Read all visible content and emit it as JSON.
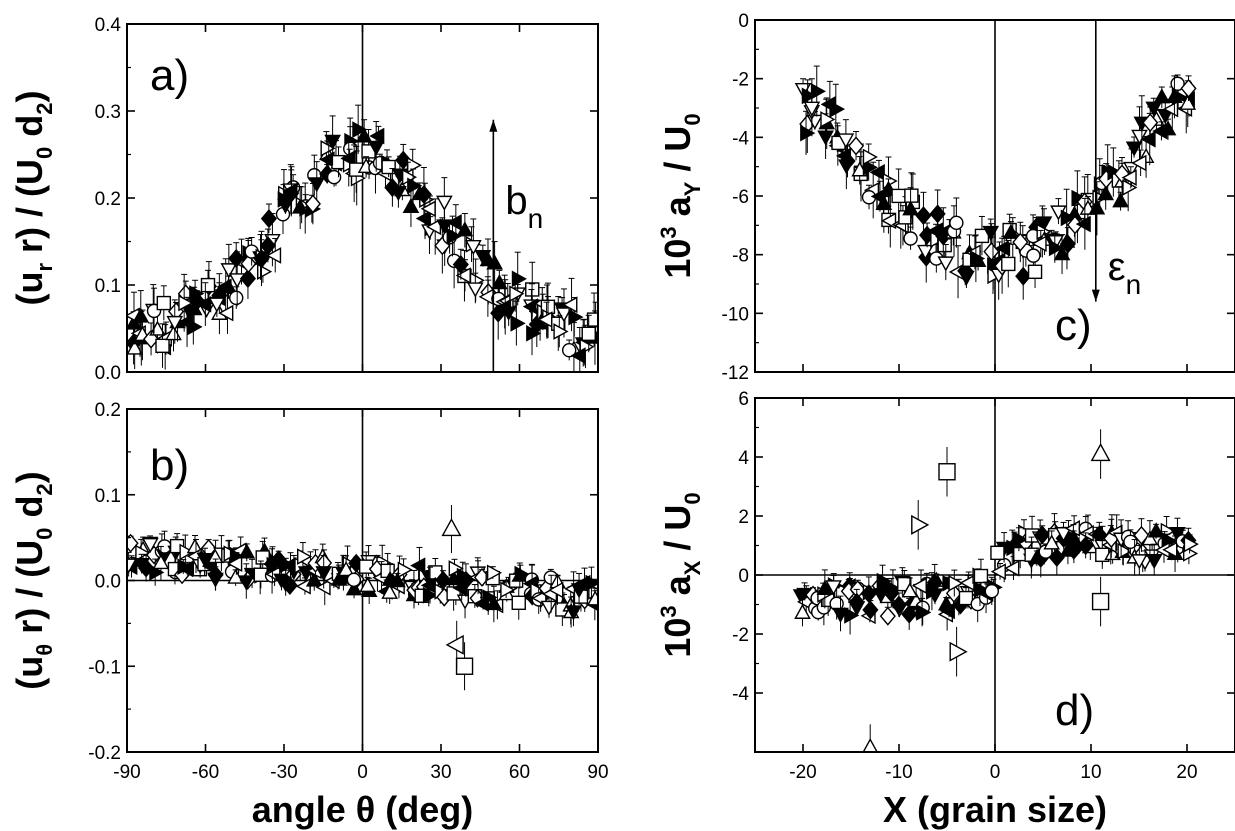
{
  "chart_data": [
    {
      "id": "a",
      "type": "scatter",
      "panel_label": "a)",
      "ylabel": {
        "pre": "(u",
        "sub1": "r",
        "mid": " r) / (U",
        "sub2": "0",
        "mid2": " d",
        "sub3": "2",
        "post": ")"
      },
      "xlim": [
        -90,
        90
      ],
      "ylim": [
        0.0,
        0.4
      ],
      "yticks": [
        0.0,
        0.1,
        0.2,
        0.3,
        0.4
      ],
      "ytick_labels": [
        "0.0",
        "0.1",
        "0.2",
        "0.3",
        "0.4"
      ],
      "annotation": {
        "text": "b",
        "sub": "n",
        "x": 50,
        "y_from": 0.0,
        "y_to": 0.29
      },
      "vline_x": 0,
      "profile": {
        "kind": "peak",
        "base": 0.04,
        "peak": 0.25,
        "center": 0,
        "width": 32,
        "noise": 0.03
      }
    },
    {
      "id": "b",
      "type": "scatter",
      "panel_label": "b)",
      "ylabel": {
        "pre": "(u",
        "sub1": "θ",
        "mid": " r) / (U",
        "sub2": "0",
        "mid2": " d",
        "sub3": "2",
        "post": ")"
      },
      "xlabel": "angle θ (deg)",
      "xlim": [
        -90,
        90
      ],
      "ylim": [
        -0.2,
        0.2
      ],
      "xticks": [
        -90,
        -60,
        -30,
        0,
        30,
        60,
        90
      ],
      "xtick_labels": [
        "-90",
        "-60",
        "-30",
        "0",
        "30",
        "60",
        "90"
      ],
      "yticks": [
        -0.2,
        -0.1,
        0.0,
        0.1,
        0.2
      ],
      "ytick_labels": [
        "-0.2",
        "-0.1",
        "0.0",
        "0.1",
        "0.2"
      ],
      "vline_x": 0,
      "hline_y": 0.0,
      "outliers": [
        {
          "x": 34,
          "y": 0.06,
          "m": "up"
        },
        {
          "x": 39,
          "y": -0.1,
          "m": "sq"
        },
        {
          "x": 36,
          "y": -0.075,
          "m": "left"
        }
      ],
      "profile": {
        "kind": "slope",
        "left": 0.03,
        "right": -0.02,
        "noise": 0.02
      }
    },
    {
      "id": "c",
      "type": "scatter",
      "panel_label": "c)",
      "ylabel": {
        "pre": "10",
        "sup": "3",
        "mid": " a",
        "sub1": "Y",
        "post": " / U",
        "sub2": "0"
      },
      "xlim": [
        -25,
        25
      ],
      "ylim": [
        -12,
        0
      ],
      "yticks": [
        -12,
        -10,
        -8,
        -6,
        -4,
        -2,
        0
      ],
      "ytick_labels": [
        "-12",
        "-10",
        "-8",
        "-6",
        "-4",
        "-2",
        "0"
      ],
      "annotation": {
        "text": "ε",
        "sub": "n",
        "x": 10.5,
        "y_from": 0.0,
        "y_to": -9.6
      },
      "vline_x": 0,
      "profile": {
        "kind": "valley",
        "edge": -3.0,
        "bottom": -8.0,
        "center": 0,
        "half": 18,
        "noise": 0.9
      }
    },
    {
      "id": "d",
      "type": "scatter",
      "panel_label": "d)",
      "ylabel": {
        "pre": "10",
        "sup": "3",
        "mid": " a",
        "sub1": "X",
        "post": " / U",
        "sub2": "0"
      },
      "xlabel": "X (grain size)",
      "xlim": [
        -25,
        25
      ],
      "ylim": [
        -6,
        6
      ],
      "xticks": [
        -20,
        -10,
        0,
        10,
        20
      ],
      "xtick_labels": [
        "-20",
        "-10",
        "0",
        "10",
        "20"
      ],
      "yticks": [
        -4,
        -2,
        0,
        2,
        4,
        6
      ],
      "ytick_labels": [
        "-4",
        "-2",
        "0",
        "2",
        "4",
        "6"
      ],
      "vline_x": 0,
      "hline_y": 0,
      "outliers": [
        {
          "x": -5,
          "y": 3.5,
          "m": "sq"
        },
        {
          "x": 11,
          "y": 4.1,
          "m": "up"
        },
        {
          "x": -13,
          "y": -5.9,
          "m": "up"
        },
        {
          "x": -4,
          "y": -2.6,
          "m": "right"
        },
        {
          "x": -8,
          "y": 1.7,
          "m": "right"
        },
        {
          "x": 11,
          "y": -0.9,
          "m": "sq"
        }
      ],
      "profile": {
        "kind": "step",
        "left": -0.8,
        "right": 1.0,
        "noise": 0.6
      }
    }
  ]
}
